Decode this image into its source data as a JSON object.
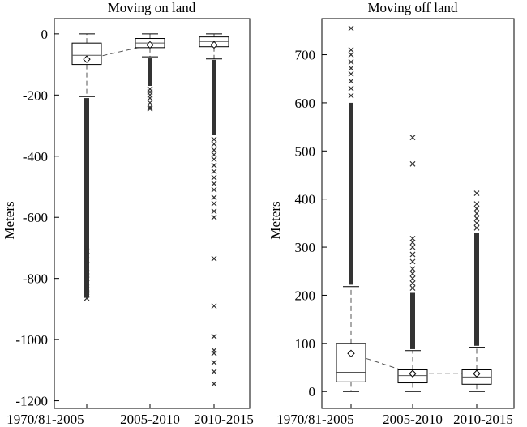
{
  "chart_data": [
    {
      "type": "box",
      "title": "Moving on land",
      "ylabel": "Meters",
      "xlabel": "",
      "ylim": [
        -1225,
        50
      ],
      "yticks": [
        0,
        -200,
        -400,
        -600,
        -800,
        -1000,
        -1200
      ],
      "grid": false,
      "legend": "none",
      "categories": [
        "1970/81-2005",
        "2005-2010",
        "2010-2015"
      ],
      "boxes": [
        {
          "category": "1970/81-2005",
          "whisker_low": -205,
          "q1": -100,
          "median": -70,
          "q3": -30,
          "whisker_high": 0,
          "mean": -83,
          "outliers_dense": [
            -860,
            -210
          ],
          "outliers": [
            -865,
            -855,
            -845,
            -835,
            -825,
            -815,
            -800,
            -790,
            -780,
            -770,
            -755,
            -740,
            -725,
            -710,
            -700
          ]
        },
        {
          "category": "2005-2010",
          "whisker_low": -75,
          "q1": -45,
          "median": -30,
          "q3": -15,
          "whisker_high": 0,
          "mean": -36,
          "outliers_dense": [
            -170,
            -80
          ],
          "outliers": [
            -180,
            -190,
            -200,
            -210,
            -225,
            -240,
            -245
          ]
        },
        {
          "category": "2010-2015",
          "whisker_low": -82,
          "q1": -42,
          "median": -25,
          "q3": -10,
          "whisker_high": 0,
          "mean": -36,
          "outliers_dense": [
            -330,
            -85
          ],
          "outliers": [
            -345,
            -360,
            -380,
            -395,
            -410,
            -430,
            -450,
            -470,
            -490,
            -510,
            -535,
            -555,
            -580,
            -600,
            -735,
            -890,
            -990,
            -1035,
            -1045,
            -1075,
            -1105,
            -1145
          ]
        }
      ],
      "mean_line": true,
      "colors": {
        "box": "#555555",
        "outlier": "#333333",
        "mean_line": "#555555"
      }
    },
    {
      "type": "box",
      "title": "Moving off land",
      "ylabel": "Meters",
      "xlabel": "",
      "ylim": [
        -35,
        775
      ],
      "yticks": [
        0,
        100,
        200,
        300,
        400,
        500,
        600,
        700
      ],
      "grid": false,
      "legend": "none",
      "categories": [
        "1970/81-2005",
        "2005-2010",
        "2010-2015"
      ],
      "boxes": [
        {
          "category": "1970/81-2005",
          "whisker_low": 0,
          "q1": 20,
          "median": 40,
          "q3": 100,
          "whisker_high": 218,
          "mean": 79,
          "outliers_dense": [
            222,
            600
          ],
          "outliers": [
            615,
            630,
            645,
            660,
            672,
            685,
            700,
            710,
            755
          ]
        },
        {
          "category": "2005-2010",
          "whisker_low": 0,
          "q1": 18,
          "median": 33,
          "q3": 45,
          "whisker_high": 85,
          "mean": 37,
          "outliers_dense": [
            88,
            205
          ],
          "outliers": [
            215,
            225,
            235,
            245,
            255,
            270,
            285,
            300,
            310,
            318,
            473,
            528
          ]
        },
        {
          "category": "2010-2015",
          "whisker_low": 0,
          "q1": 15,
          "median": 30,
          "q3": 45,
          "whisker_high": 92,
          "mean": 37,
          "outliers_dense": [
            95,
            330
          ],
          "outliers": [
            340,
            350,
            360,
            370,
            380,
            390,
            412
          ]
        }
      ],
      "mean_line": true,
      "colors": {
        "box": "#555555",
        "outlier": "#333333",
        "mean_line": "#555555"
      }
    }
  ]
}
